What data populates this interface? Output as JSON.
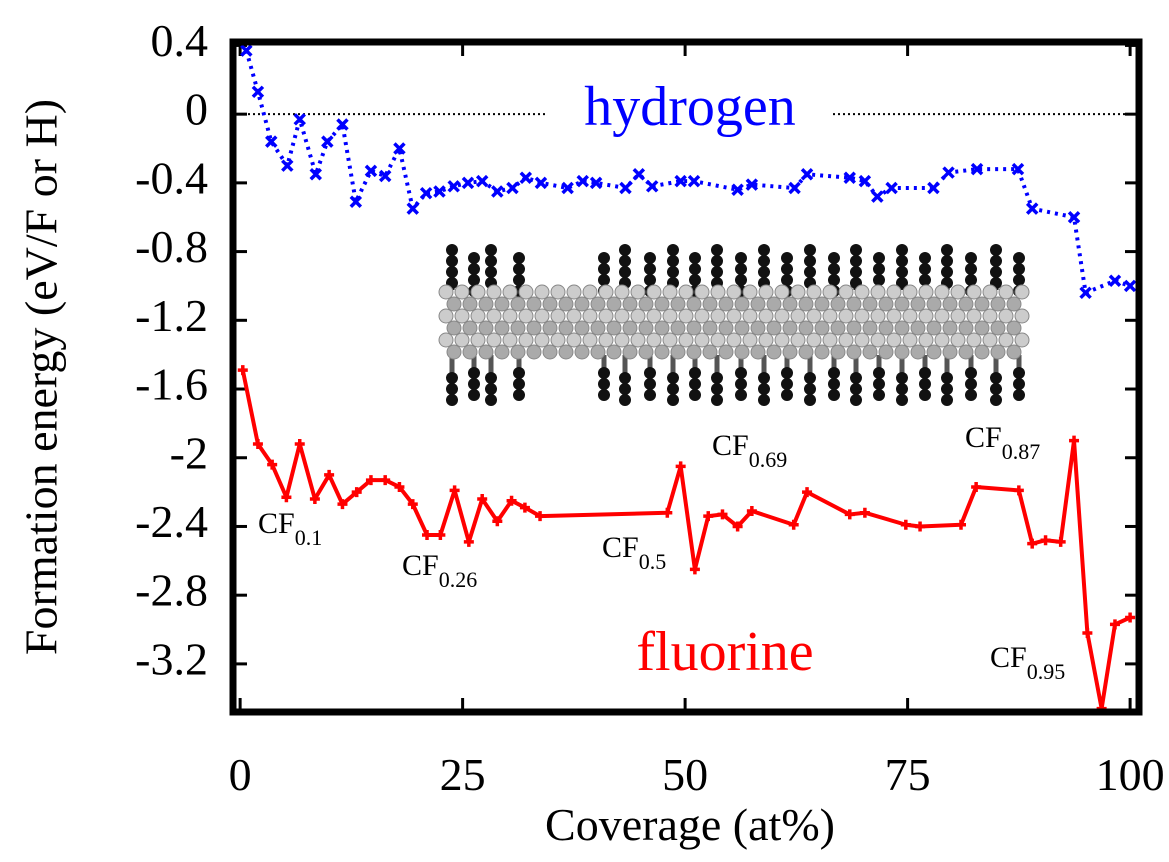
{
  "chart_data": {
    "type": "line",
    "xlabel": "Coverage (at%)",
    "ylabel": "Formation energy (eV/F or H)",
    "xlim": [
      -0.8,
      101
    ],
    "ylim": [
      -3.48,
      0.42
    ],
    "xticks": [
      0,
      25,
      50,
      75,
      100
    ],
    "yticks": [
      0.4,
      0,
      -0.4,
      -0.8,
      -1.2,
      -1.6,
      -2,
      -2.4,
      -2.8,
      -3.2
    ],
    "reference_line": 0,
    "series": [
      {
        "name": "hydrogen",
        "color": "#0000ff",
        "marker": "x",
        "dashed": true,
        "x": [
          0.7,
          2,
          3.5,
          5.3,
          6.7,
          8.5,
          9.8,
          11.5,
          13,
          14.7,
          16.3,
          17.9,
          19.4,
          20.9,
          22.4,
          24,
          25.6,
          27.2,
          28.9,
          30.6,
          32.1,
          33.8,
          36.8,
          38.5,
          40,
          43.3,
          44.8,
          46.3,
          49.5,
          51,
          55.9,
          57.5,
          62.3,
          63.7,
          68.5,
          70.2,
          71.6,
          73.2,
          77.9,
          79.6,
          82.8,
          87.4,
          89,
          93.7,
          95,
          98.3,
          100
        ],
        "values": [
          0.37,
          0.13,
          -0.16,
          -0.3,
          -0.03,
          -0.35,
          -0.16,
          -0.06,
          -0.51,
          -0.33,
          -0.36,
          -0.2,
          -0.55,
          -0.46,
          -0.45,
          -0.42,
          -0.4,
          -0.39,
          -0.45,
          -0.43,
          -0.37,
          -0.4,
          -0.43,
          -0.39,
          -0.4,
          -0.43,
          -0.35,
          -0.42,
          -0.39,
          -0.39,
          -0.44,
          -0.41,
          -0.43,
          -0.35,
          -0.37,
          -0.39,
          -0.48,
          -0.43,
          -0.43,
          -0.34,
          -0.32,
          -0.32,
          -0.55,
          -0.6,
          -1.04,
          -0.97,
          -1.0
        ]
      },
      {
        "name": "fluorine",
        "color": "#ff0000",
        "marker": "+",
        "dashed": false,
        "x": [
          0.3,
          2,
          3.6,
          5.2,
          6.7,
          8.4,
          10,
          11.5,
          13.1,
          14.7,
          16.3,
          17.9,
          19.4,
          21,
          22.5,
          24.1,
          25.7,
          27.2,
          28.9,
          30.5,
          32,
          33.7,
          48,
          49.5,
          51.1,
          52.6,
          54.2,
          55.9,
          57.5,
          62.2,
          63.7,
          68.5,
          70.2,
          74.8,
          76.4,
          81,
          82.7,
          87.5,
          89,
          90.5,
          92.2,
          93.7,
          95.2,
          96.8,
          98.3,
          100
        ],
        "values": [
          -1.49,
          -1.92,
          -2.04,
          -2.23,
          -1.92,
          -2.24,
          -2.1,
          -2.27,
          -2.2,
          -2.13,
          -2.13,
          -2.17,
          -2.27,
          -2.45,
          -2.45,
          -2.19,
          -2.49,
          -2.24,
          -2.37,
          -2.25,
          -2.29,
          -2.34,
          -2.32,
          -2.05,
          -2.65,
          -2.34,
          -2.33,
          -2.4,
          -2.31,
          -2.39,
          -2.2,
          -2.33,
          -2.32,
          -2.39,
          -2.4,
          -2.39,
          -2.17,
          -2.19,
          -2.5,
          -2.48,
          -2.49,
          -1.9,
          -3.02,
          -3.46,
          -2.97,
          -2.93
        ]
      }
    ],
    "annotations": [
      {
        "text": "CF",
        "subscript": "0.1"
      },
      {
        "text": "CF",
        "subscript": "0.26"
      },
      {
        "text": "CF",
        "subscript": "0.5"
      },
      {
        "text": "CF",
        "subscript": "0.69"
      },
      {
        "text": "CF",
        "subscript": "0.87"
      },
      {
        "text": "CF",
        "subscript": "0.95"
      }
    ]
  }
}
